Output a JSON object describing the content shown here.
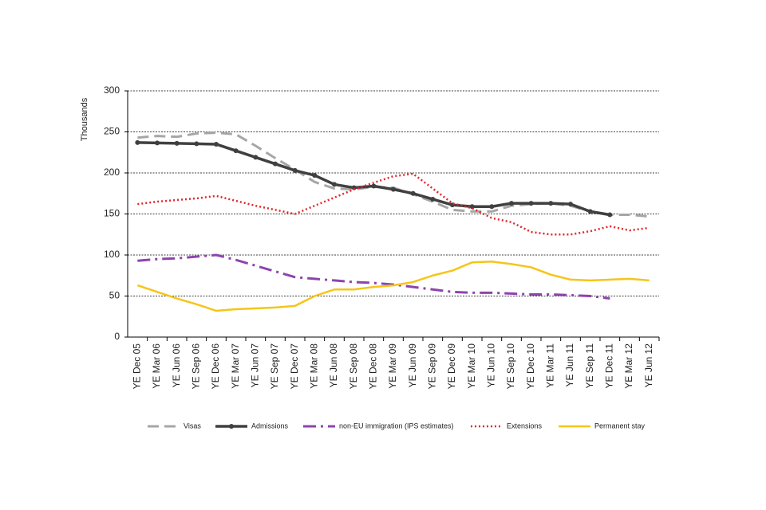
{
  "chart_data": {
    "type": "line",
    "y_label": "Thousands",
    "categories": [
      "YE Dec 05",
      "YE Mar 06",
      "YE Jun 06",
      "YE Sep 06",
      "YE Dec 06",
      "YE Mar 07",
      "YE Jun 07",
      "YE Sep 07",
      "YE Dec 07",
      "YE Mar 08",
      "YE Jun 08",
      "YE Sep 08",
      "YE Dec 08",
      "YE Mar 09",
      "YE Jun 09",
      "YE Sep 09",
      "YE Dec 09",
      "YE Mar 10",
      "YE Jun 10",
      "YE Sep 10",
      "YE Dec 10",
      "YE Mar 11",
      "YE Jun 11",
      "YE Sep 11",
      "YE Dec 11",
      "YE Mar 12",
      "YE Jun 12"
    ],
    "series": [
      {
        "name": "Visas",
        "color": "#a6a6a6",
        "values": [
          243,
          245,
          244,
          248,
          249,
          247,
          233,
          218,
          204,
          189,
          181,
          180,
          183,
          182,
          174,
          165,
          155,
          153,
          153,
          160,
          162,
          163,
          160,
          153,
          149,
          149,
          147
        ]
      },
      {
        "name": "Admissions",
        "color": "#404040",
        "values": [
          237,
          236.5,
          236,
          235.5,
          235,
          227,
          219,
          211,
          203,
          197,
          186,
          182,
          184,
          180,
          175,
          168,
          161,
          159,
          159,
          163,
          163,
          163,
          162,
          153,
          149,
          null,
          null
        ]
      },
      {
        "name": "non-EU immigration (IPS estimates)",
        "color": "#8e44ad",
        "values": [
          93,
          95,
          96,
          98,
          100,
          94,
          87,
          80,
          73,
          71,
          69,
          67,
          66,
          64,
          61,
          58,
          55,
          54,
          54,
          53,
          52,
          52,
          51,
          50,
          47,
          null,
          null
        ]
      },
      {
        "name": "Extensions",
        "color": "#e3262a",
        "values": [
          162,
          165,
          167,
          169,
          172,
          166,
          160,
          155,
          150,
          160,
          170,
          180,
          188,
          196,
          199,
          181,
          163,
          157,
          145,
          140,
          128,
          125,
          125,
          129,
          135,
          130,
          133
        ]
      },
      {
        "name": "Permanent stay",
        "color": "#f5c518",
        "values": [
          63,
          55,
          47,
          40,
          32,
          34,
          35,
          36,
          38,
          50,
          58,
          58,
          61,
          63,
          67,
          75,
          81,
          91,
          92,
          89,
          85,
          76,
          70,
          69,
          70,
          71,
          69
        ]
      }
    ],
    "ylim": [
      0,
      300
    ],
    "yticks": [
      0,
      50,
      100,
      150,
      200,
      250,
      300
    ],
    "grid": true,
    "legend": "bottom"
  }
}
